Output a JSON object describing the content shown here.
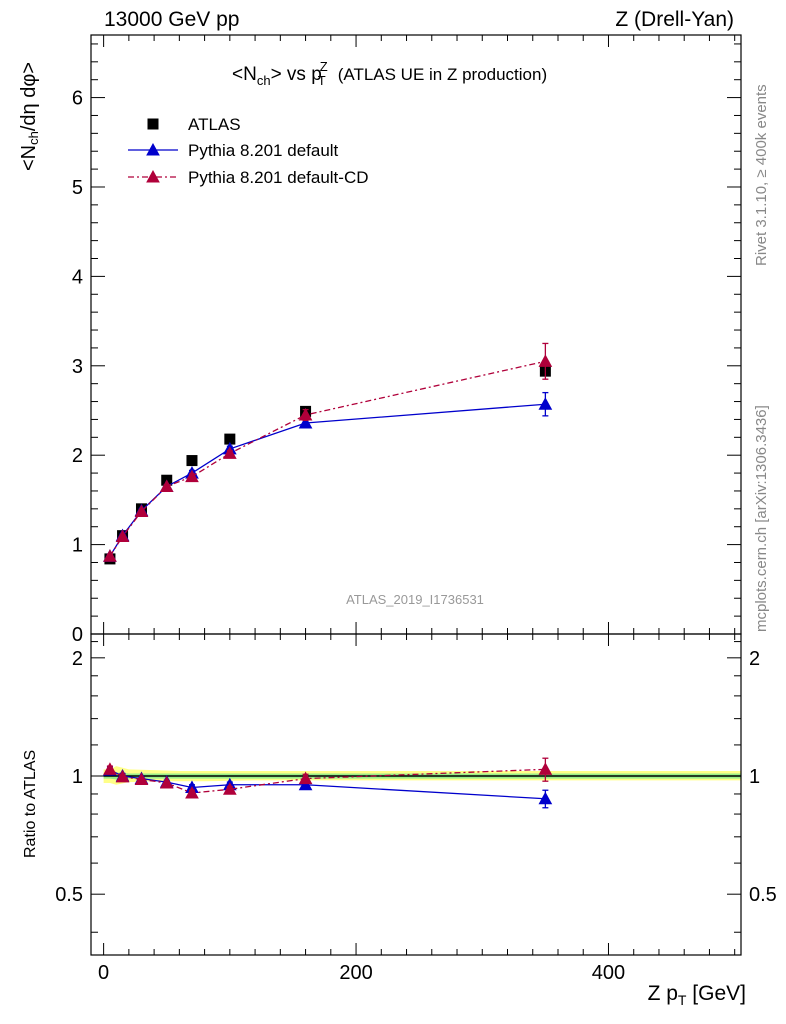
{
  "header": {
    "left": "13000 GeV pp",
    "right": "Z (Drell-Yan)"
  },
  "side_text": {
    "rivet": "Rivet 3.1.10, ≥ 400k events",
    "mcplots": "mcplots.cern.ch [arXiv:1306.3436]"
  },
  "chart_data": [
    {
      "type": "scatter",
      "title": "<N_ch> vs p_T^Z (ATLAS UE in Z production)",
      "title_main": "<N",
      "title_sub": "ch",
      "title_mid": "> vs p",
      "title_sup": "Z",
      "title_sub2": "T",
      "title_rest": "(ATLAS UE in Z production)",
      "analysis_id": "ATLAS_2019_I1736531",
      "ylabel": "<N_ch/dη dφ>",
      "ylabel_parts": {
        "a": "<N",
        "sub": "ch",
        "b": "/dη dφ>"
      },
      "xlim": [
        -10,
        505
      ],
      "ylim": [
        0,
        6.7
      ],
      "y_ticks": [
        0,
        1,
        2,
        3,
        4,
        5,
        6
      ],
      "y_tick_labels": [
        "0",
        "1",
        "2",
        "3",
        "4",
        "5",
        "6"
      ],
      "legend_position": "top-left",
      "series": [
        {
          "name": "ATLAS",
          "color": "#000000",
          "marker": "square",
          "x": [
            5,
            15,
            30,
            50,
            70,
            100,
            160,
            350
          ],
          "y": [
            0.84,
            1.1,
            1.4,
            1.72,
            1.94,
            2.18,
            2.49,
            2.94
          ]
        },
        {
          "name": "Pythia 8.201 default",
          "color": "#0000cc",
          "marker": "triangle",
          "line": "solid",
          "x": [
            5,
            15,
            30,
            50,
            70,
            100,
            160,
            350
          ],
          "y": [
            0.87,
            1.1,
            1.38,
            1.65,
            1.8,
            2.07,
            2.36,
            2.57
          ],
          "err": [
            0.02,
            0.02,
            0.02,
            0.02,
            0.03,
            0.03,
            0.05,
            0.13
          ]
        },
        {
          "name": "Pythia 8.201 default-CD",
          "color": "#b0003a",
          "marker": "triangle",
          "line": "dashdot",
          "x": [
            5,
            15,
            30,
            50,
            70,
            100,
            160,
            350
          ],
          "y": [
            0.87,
            1.09,
            1.37,
            1.65,
            1.76,
            2.02,
            2.45,
            3.05
          ],
          "err": [
            0.02,
            0.02,
            0.02,
            0.02,
            0.03,
            0.03,
            0.06,
            0.2
          ]
        }
      ]
    },
    {
      "type": "scatter",
      "ylabel": "Ratio to ATLAS",
      "xlabel": "Z p_T [GeV]",
      "xlabel_parts": {
        "a": "Z p",
        "sub": "T",
        "b": " [GeV]"
      },
      "xlim": [
        -10,
        505
      ],
      "ylim": [
        0.35,
        2.3
      ],
      "log_y": true,
      "x_ticks": [
        0,
        200,
        400
      ],
      "x_tick_labels": [
        "0",
        "200",
        "400"
      ],
      "y_ticks": [
        0.5,
        1,
        2
      ],
      "y_tick_labels": [
        "0.5",
        "1",
        "2"
      ],
      "band": {
        "x": [
          0,
          5,
          10,
          20,
          40,
          60,
          80,
          120,
          200,
          505
        ],
        "inner_lo": [
          0.985,
          0.985,
          0.98,
          0.985,
          0.985,
          0.985,
          0.985,
          0.985,
          0.985,
          0.985
        ],
        "inner_hi": [
          1.015,
          1.015,
          1.02,
          1.015,
          1.015,
          1.015,
          1.015,
          1.015,
          1.015,
          1.015
        ],
        "outer_lo": [
          0.96,
          0.96,
          0.95,
          0.965,
          0.97,
          0.97,
          0.97,
          0.975,
          0.975,
          0.975
        ],
        "outer_hi": [
          1.04,
          1.04,
          1.06,
          1.04,
          1.035,
          1.03,
          1.03,
          1.03,
          1.03,
          1.03
        ],
        "inner_color": "#99ee88",
        "outer_color": "#ffff88"
      },
      "series": [
        {
          "name": "Pythia 8.201 default",
          "color": "#0000cc",
          "x": [
            5,
            15,
            30,
            50,
            70,
            100,
            160,
            350
          ],
          "y": [
            1.035,
            1.0,
            0.985,
            0.965,
            0.935,
            0.95,
            0.95,
            0.875
          ],
          "err": [
            0.02,
            0.015,
            0.01,
            0.01,
            0.015,
            0.015,
            0.02,
            0.045
          ]
        },
        {
          "name": "Pythia 8.201 default-CD",
          "color": "#b0003a",
          "x": [
            5,
            15,
            30,
            50,
            70,
            100,
            160,
            350
          ],
          "y": [
            1.04,
            0.995,
            0.98,
            0.96,
            0.905,
            0.925,
            0.985,
            1.04
          ],
          "err": [
            0.02,
            0.015,
            0.01,
            0.01,
            0.015,
            0.015,
            0.025,
            0.07
          ]
        }
      ]
    }
  ]
}
